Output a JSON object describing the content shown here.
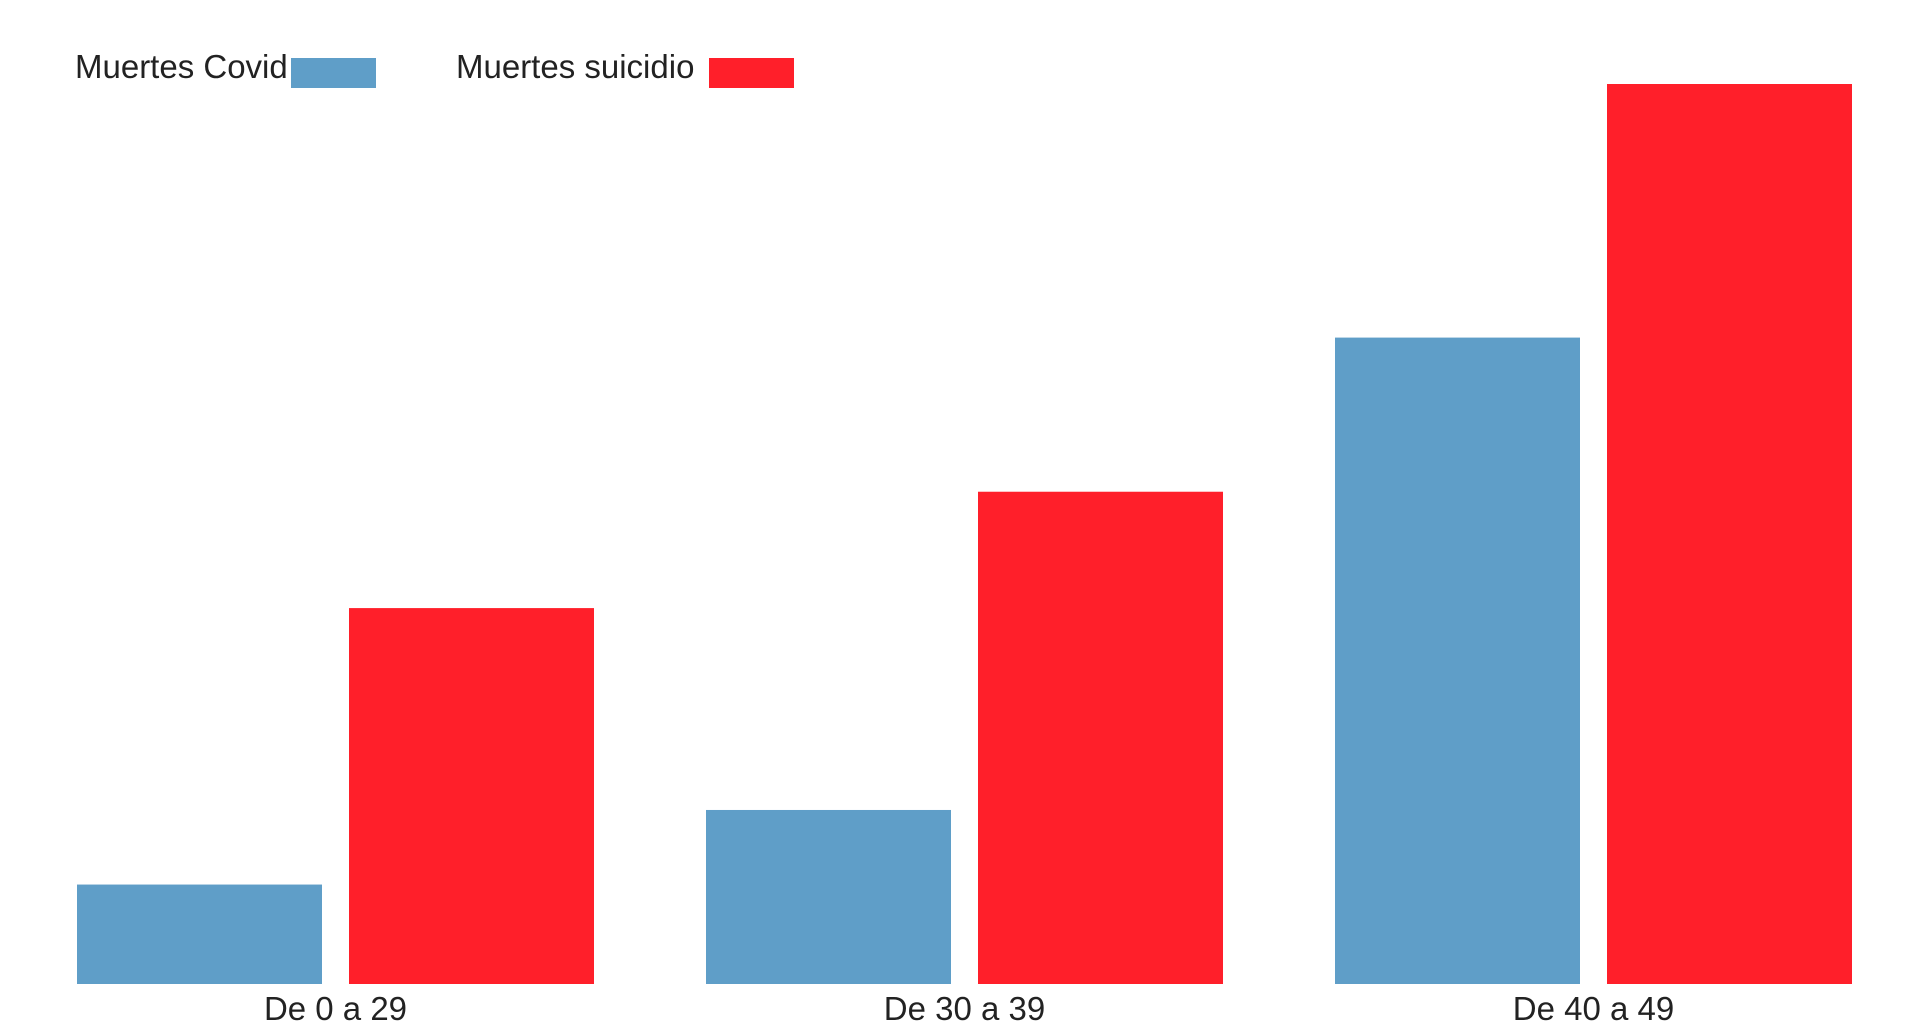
{
  "chart_data": {
    "type": "bar",
    "categories": [
      "De 0 a 29",
      "De 30 a 39",
      "De 40 a 49"
    ],
    "series": [
      {
        "name": "Muertes Covid",
        "values": [
          100,
          175,
          650
        ],
        "color": "#5f9ec8"
      },
      {
        "name": "Muertes suicidio",
        "values": [
          378,
          495,
          905
        ],
        "color": "#ff1f2a"
      }
    ],
    "ylim": [
      0,
      905
    ],
    "grid": false,
    "legend": "top-left"
  }
}
